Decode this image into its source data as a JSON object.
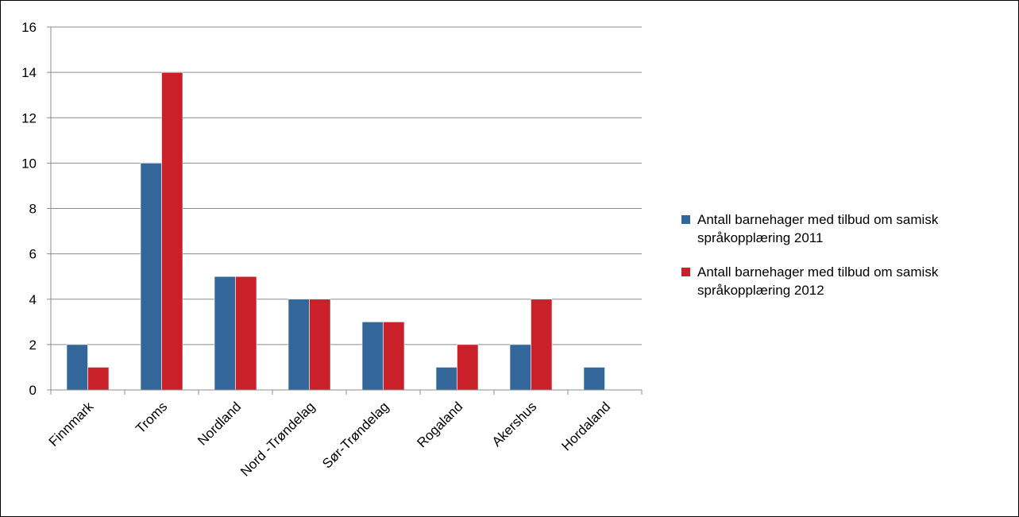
{
  "chart_data": {
    "type": "bar",
    "title": "",
    "xlabel": "",
    "ylabel": "",
    "ylim": [
      0,
      16
    ],
    "yticks": [
      0,
      2,
      4,
      6,
      8,
      10,
      12,
      14,
      16
    ],
    "grid": true,
    "legend_position": "right",
    "categories": [
      "Finnmark",
      "Troms",
      "Nordland",
      "Nord -Trøndelag",
      "Sør-Trøndelag",
      "Rogaland",
      "Akershus",
      "Hordaland"
    ],
    "series": [
      {
        "name": "Antall barnehager med tilbud om samisk språkopplæring 2011",
        "color": "#336699",
        "values": [
          2,
          10,
          5,
          4,
          3,
          1,
          2,
          1
        ]
      },
      {
        "name": "Antall barnehager med tilbud om samisk språkopplæring 2012",
        "color": "#c9202a",
        "values": [
          1,
          14,
          5,
          4,
          3,
          2,
          4,
          0
        ]
      }
    ]
  }
}
